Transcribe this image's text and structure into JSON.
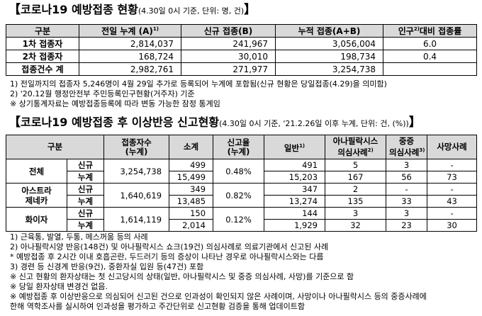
{
  "title1": {
    "bracket_open": "【",
    "main": "코로나19 예방접종 현황",
    "sub": "(4.30일 0시 기준, 단위: 명, 건)",
    "bracket_close": "】"
  },
  "table1": {
    "headers": [
      "구분",
      "전일 누계 (A)",
      "1)",
      "신규 접종(B)",
      "누적 접종(A+B)",
      "인구",
      "2)",
      "대비 접종률"
    ],
    "rows": [
      {
        "label": "1차 접종자",
        "prev": "2,814,037",
        "new": "241,967",
        "cum": "3,056,004",
        "rate": "6.0"
      },
      {
        "label": "2차 접종자",
        "prev": "168,724",
        "new": "30,010",
        "cum": "198,734",
        "rate": "0.4"
      },
      {
        "label": "접종건수 계",
        "prev": "2,982,761",
        "new": "271,977",
        "cum": "3,254,738",
        "rate": ""
      }
    ]
  },
  "notes1": [
    "1) 전일까지의 접종자 5,246명이 4월 29일 추가로 등록되어 누계에 포함됨(신규 현황은 당일접종(4.29)을 의미함)",
    "2) '20.12월 행정안전부 주민등록인구현황(거주자) 기준",
    "※ 상기통계자료는 예방접종등록에 따라 변동 가능한 잠정 통계임"
  ],
  "title2": {
    "bracket_open": "【",
    "main": "코로나19 예방접종 후 이상반응 신고현황",
    "sub": "(4.30일 0시 기준, '21.2.26일 이후 누계, 단위: 건, (%))",
    "bracket_close": "】"
  },
  "table2": {
    "headers": {
      "category": "구분",
      "vaccinated_l1": "접종자수",
      "vaccinated_l2": "(누계)",
      "subtotal": "소계",
      "rate_l1": "신고율",
      "rate_l2": "(누계)",
      "general": "일반",
      "general_sup": "1)",
      "anaphylaxis_l1": "아나필락시스",
      "anaphylaxis_l2": "의심사례",
      "anaphylaxis_sup": "2)",
      "serious_l1": "중증",
      "serious_l2": "의심사례",
      "serious_sup": "3)",
      "death": "사망사례"
    },
    "groups": [
      {
        "name_l1": "전체",
        "name_l2": "",
        "vaccinated": "3,254,738",
        "rate": "0.48%",
        "rows": [
          {
            "type": "신규",
            "subtotal": "499",
            "general": "491",
            "anaphylaxis": "5",
            "serious": "3",
            "death": "-"
          },
          {
            "type": "누계",
            "subtotal": "15,499",
            "general": "15,203",
            "anaphylaxis": "167",
            "serious": "56",
            "death": "73"
          }
        ]
      },
      {
        "name_l1": "아스트라",
        "name_l2": "제네카",
        "vaccinated": "1,640,619",
        "rate": "0.82%",
        "rows": [
          {
            "type": "신규",
            "subtotal": "349",
            "general": "347",
            "anaphylaxis": "2",
            "serious": "-",
            "death": "-"
          },
          {
            "type": "누계",
            "subtotal": "13,485",
            "general": "13,274",
            "anaphylaxis": "135",
            "serious": "33",
            "death": "43"
          }
        ]
      },
      {
        "name_l1": "화이자",
        "name_l2": "",
        "vaccinated": "1,614,119",
        "rate": "0.12%",
        "rows": [
          {
            "type": "신규",
            "subtotal": "150",
            "general": "144",
            "anaphylaxis": "3",
            "serious": "3",
            "death": "-"
          },
          {
            "type": "누계",
            "subtotal": "2,014",
            "general": "1,929",
            "anaphylaxis": "32",
            "serious": "23",
            "death": "30"
          }
        ]
      }
    ]
  },
  "notes2": [
    "1) 근육통, 발열, 두통, 메스꺼움 등의 사례",
    "2) 아나필락시양 반응(148건) 및 아나필락시스 쇼크(19건) 의심사례로 의료기관에서 신고된 사례",
    "* 예방접종 후 2시간 이내 호흡곤란, 두드러기 등의 증상이 나타난 경우로 아나필락시스와는 다름",
    "3) 경련 등 신경계 반응(9건), 중환자실 입원 등(47건) 포함",
    "※ 신고 현황의 환자상태는 첫 신고당시의 상태(일반, 아나필락시스 및 중증 의심사례, 사망)를 기준으로 함",
    "※ 당일 환자상태 변경건 없음.",
    "※ 예방접종 후 이상반응으로 의심되어 신고된 건으로 인과성이 확인되지 않은 사례이며, 사망이나 아나필락시스 등의 중증사례에",
    "   한해 역학조사를 실시하여 인과성을 평가하고 주간단위로 신고현황 검증을 통해 업데이트함"
  ]
}
